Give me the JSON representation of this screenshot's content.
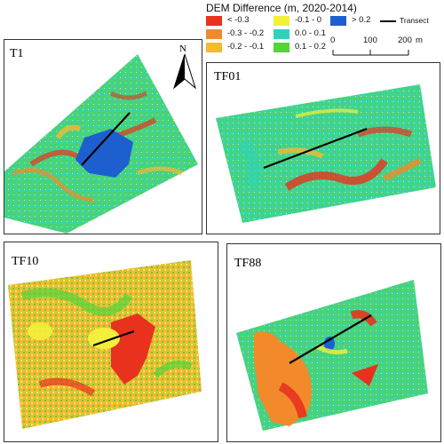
{
  "legend": {
    "title": "DEM Difference (m, 2020-2014)",
    "items": [
      {
        "label": "< -0.3",
        "color": "#e8321e"
      },
      {
        "label": "-0.3 - -0.2",
        "color": "#f28a2c"
      },
      {
        "label": "-0.2 - -0.1",
        "color": "#f5b932"
      },
      {
        "label": "-0.1 - 0",
        "color": "#f4ef3a"
      },
      {
        "label": "0.0 - 0.1",
        "color": "#2fd3b8"
      },
      {
        "label": "0.1 - 0.2",
        "color": "#52d43a"
      },
      {
        "label": "> 0.2",
        "color": "#1e5fcf"
      }
    ],
    "transect_label": "Transect"
  },
  "scalebar": {
    "labels": [
      "0",
      "100",
      "200"
    ],
    "unit": "m"
  },
  "north": {
    "label": "N"
  },
  "panels": {
    "t1": {
      "label": "T1"
    },
    "tf01": {
      "label": "TF01"
    },
    "tf10": {
      "label": "TF10"
    },
    "tf88": {
      "label": "TF88"
    }
  }
}
